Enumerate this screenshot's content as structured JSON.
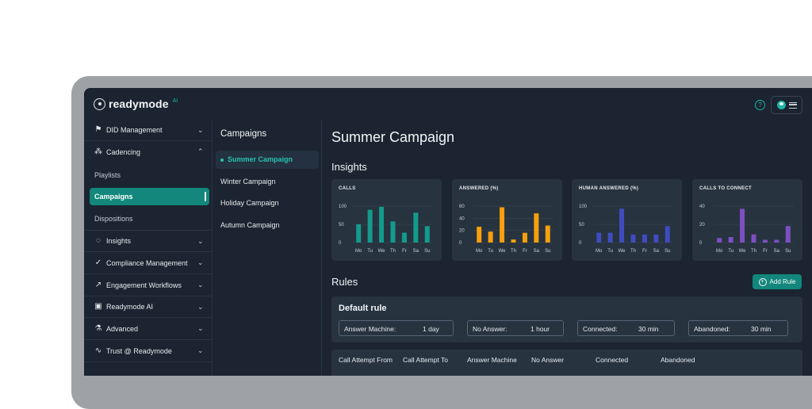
{
  "app": {
    "name": "readymode",
    "badge": "AI"
  },
  "sidebar": {
    "items": [
      {
        "label": "DID Management",
        "icon": "flag-icon",
        "chevron": "⌄"
      },
      {
        "label": "Cadencing",
        "icon": "nodes-icon",
        "chevron": "⌃"
      },
      {
        "label": "Insights",
        "icon": "bulb-icon",
        "chevron": "⌄"
      },
      {
        "label": "Compliance Management",
        "icon": "check-circle-icon",
        "chevron": "⌄"
      },
      {
        "label": "Engagement Workflows",
        "icon": "workflow-icon",
        "chevron": "⌄"
      },
      {
        "label": "Readymode AI",
        "icon": "robot-icon",
        "chevron": "⌄"
      },
      {
        "label": "Advanced",
        "icon": "flask-icon",
        "chevron": "⌄"
      },
      {
        "label": "Trust @ Readymode",
        "icon": "pulse-icon",
        "chevron": "⌄"
      }
    ],
    "sub_items": [
      "Playlists",
      "Campaigns",
      "Dispositions"
    ]
  },
  "campaigns": {
    "title": "Campaigns",
    "items": [
      "Summer Campaign",
      "Winter Campaign",
      "Holiday Campaign",
      "Autumn Campaign"
    ]
  },
  "main": {
    "title": "Summer Campaign",
    "insights_title": "Insights",
    "rules_title": "Rules",
    "add_rule_label": "Add Rule"
  },
  "charts": [
    {
      "title": "CALLS",
      "color": "#139b8b",
      "ylim": [
        0,
        100
      ],
      "ticks": [
        "100",
        "50",
        "0"
      ],
      "tick_values": [
        100,
        50,
        0
      ],
      "days": [
        "Mo",
        "Tu",
        "We",
        "Th",
        "Fr",
        "Sa",
        "Su"
      ],
      "values": [
        50,
        90,
        98,
        58,
        27,
        82,
        45
      ]
    },
    {
      "title": "ANSWERED (%)",
      "color": "#f5a00c",
      "ylim": [
        0,
        60
      ],
      "ticks": [
        "60",
        "40",
        "20",
        "0"
      ],
      "tick_values": [
        60,
        40,
        20,
        0
      ],
      "days": [
        "Mo",
        "Tu",
        "We",
        "Th",
        "Fr",
        "Sa",
        "Su"
      ],
      "values": [
        26,
        18,
        58,
        5,
        16,
        48,
        28
      ]
    },
    {
      "title": "HUMAN ANSWERED (%)",
      "color": "#3f4bbf",
      "ylim": [
        0,
        100
      ],
      "ticks": [
        "100",
        "50",
        "0"
      ],
      "tick_values": [
        100,
        50,
        0
      ],
      "days": [
        "Mo",
        "Tu",
        "We",
        "Th",
        "Fr",
        "Sa",
        "Su"
      ],
      "values": [
        27,
        27,
        93,
        22,
        22,
        22,
        45
      ]
    },
    {
      "title": "CALLS TO CONNECT",
      "color": "#7e4fc2",
      "ylim": [
        0,
        40
      ],
      "ticks": [
        "40",
        "20",
        "0"
      ],
      "tick_values": [
        40,
        20,
        0
      ],
      "days": [
        "Mo",
        "Tu",
        "We",
        "Th",
        "Fr",
        "Sa",
        "Su"
      ],
      "values": [
        5,
        6,
        37,
        9,
        3,
        3,
        18
      ]
    }
  ],
  "rules": {
    "default_name": "Default rule",
    "fields": [
      {
        "label": "Answer Machine:",
        "value": "1 day"
      },
      {
        "label": "No Answer:",
        "value": "1 hour"
      },
      {
        "label": "Connected:",
        "value": "30 min"
      },
      {
        "label": "Abandoned:",
        "value": "30 min"
      }
    ],
    "columns": [
      "Call Attempt From",
      "Call Attempt To",
      "Answer Machine",
      "No Answer",
      "Connected",
      "Abandoned"
    ]
  }
}
